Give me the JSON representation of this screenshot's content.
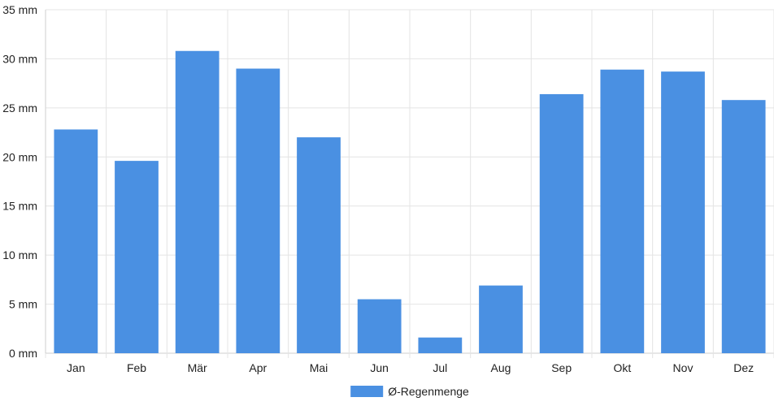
{
  "chart_data": {
    "type": "bar",
    "categories": [
      "Jan",
      "Feb",
      "Mär",
      "Apr",
      "Mai",
      "Jun",
      "Jul",
      "Aug",
      "Sep",
      "Okt",
      "Nov",
      "Dez"
    ],
    "series": [
      {
        "name": "Ø-Regenmenge",
        "values": [
          22.8,
          19.6,
          30.8,
          29.0,
          22.0,
          5.5,
          1.6,
          6.9,
          26.4,
          28.9,
          28.7,
          25.8
        ],
        "color": "#4a90e2"
      }
    ],
    "y_unit": "mm",
    "yticks": [
      0,
      5,
      10,
      15,
      20,
      25,
      30,
      35
    ],
    "ylim": [
      0,
      35
    ],
    "grid": true,
    "legend_position": "bottom-center"
  }
}
